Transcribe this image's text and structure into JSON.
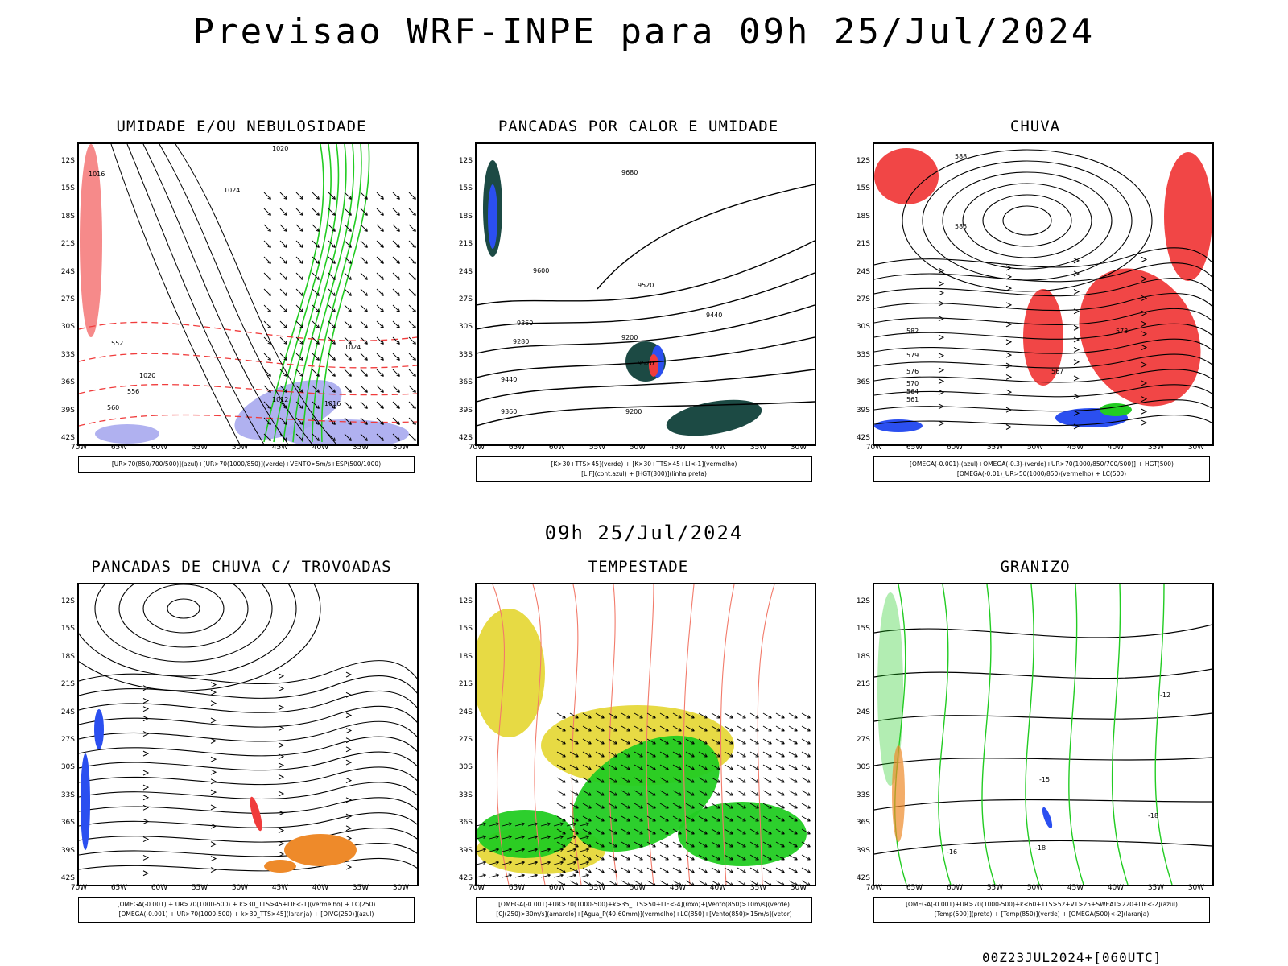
{
  "header": {
    "title": "Previsao WRF-INPE  para 09h 25/Jul/2024",
    "mid_title": "09h 25/Jul/2024",
    "footer": "00Z23JUL2024+[060UTC]"
  },
  "axes": {
    "lat_labels": [
      "12S",
      "15S",
      "18S",
      "21S",
      "24S",
      "27S",
      "30S",
      "33S",
      "36S",
      "39S",
      "42S"
    ],
    "lon_labels": [
      "70W",
      "65W",
      "60W",
      "55W",
      "50W",
      "45W",
      "40W",
      "35W",
      "30W"
    ]
  },
  "panels": [
    {
      "title": "UMIDADE E/OU NEBULOSIDADE",
      "legend": [
        "[UR>70(850/700/500)](azul)+[UR>70(1000/850)](verde)+VENTO>5m/s+ESP(500/1000)"
      ],
      "contour_labels": [
        "1020",
        "1024",
        "1016",
        "1020",
        "1012",
        "1016",
        "1024",
        "552",
        "556",
        "560"
      ]
    },
    {
      "title": "PANCADAS POR CALOR E UMIDADE",
      "legend": [
        "[K>30+TTS>45](verde) + [K>30+TTS>45+LI<-1](vermelho)",
        "[LIF](cont.azul) + [HGT(300)](linha preta)"
      ],
      "contour_labels": [
        "9680",
        "9600",
        "9520",
        "9440",
        "9360",
        "9280",
        "9200",
        "9520",
        "9440",
        "9360",
        "9200"
      ]
    },
    {
      "title": "CHUVA",
      "legend": [
        "[OMEGA(-0.001)-(azul)+OMEGA(-0.3)-(verde)+UR>70(1000/850/700/500)] + HGT(500)",
        "[OMEGA(-0.01)_UR>50(1000/850)(vermelho) + LC(500)"
      ],
      "contour_labels": [
        "588",
        "585",
        "582",
        "579",
        "576",
        "573",
        "570",
        "567",
        "564",
        "561"
      ]
    },
    {
      "title": "PANCADAS DE CHUVA C/ TROVOADAS",
      "legend": [
        "[OMEGA(-0.001) + UR>70(1000-500) + k>30_TTS>45+LIF<-1](vermelho) + LC(250)",
        "[OMEGA(-0.001) + UR>70(1000-500) + k>30_TTS>45](laranja) + [DIVG(250)](azul)"
      ],
      "contour_labels": []
    },
    {
      "title": "TEMPESTADE",
      "legend": [
        "[OMEGA(-0.001)+UR>70(1000-500)+k>35_TTS>50+LIF<-4](roxo)+[Vento(850)>10m/s](verde)",
        "[CJ(250)>30m/s](amarelo)+[Agua_P(40-60mm)](vermelho)+LC(850)+[Vento(850)>15m/s](vetor)"
      ],
      "contour_labels": []
    },
    {
      "title": "GRANIZO",
      "legend": [
        "[OMEGA(-0.001)+UR>70(1000-500)+k<60+TTS>52+VT>25+SWEAT>220+LIF<-2](azul)",
        "[Temp(500)](preto) + [Temp(850)](verde) + [OMEGA(500)<-2](laranja)"
      ],
      "contour_labels": [
        "-12",
        "-15",
        "-18",
        "-18",
        "-16"
      ]
    }
  ],
  "colors": {
    "red": "#f03c3c",
    "green": "#22cc22",
    "blue": "#2b4ff0",
    "lavender": "#a7a8ee",
    "yellow": "#e6d83a",
    "orange": "#ee8a2a",
    "teal": "#1c4a44",
    "salmon": "#f27a6a"
  }
}
